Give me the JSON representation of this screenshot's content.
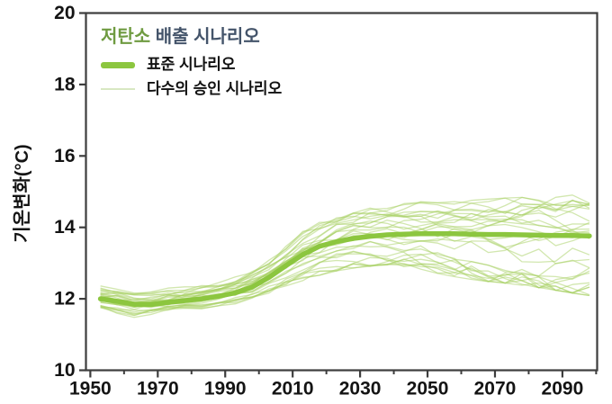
{
  "colors": {
    "frame": "#3d3d3d",
    "tick_label": "#141414",
    "mean_line": "#8cc63f",
    "ensemble_line": "#a6cf60",
    "legend_thin_swatch": "#d8e8c2",
    "title_highlight": "#6f9b41",
    "title_rest": "#44546a",
    "background": "#ffffff"
  },
  "legend": {
    "title_highlight": "저탄소",
    "title_rest": " 배출 시나리오",
    "items": [
      {
        "label": "표준 시나리오",
        "swatch": "thick-line"
      },
      {
        "label": "다수의 승인 시나리오",
        "swatch": "thin-line"
      }
    ]
  },
  "axes": {
    "y_title": "기온변화(°C)",
    "y_tick_labels": [
      "10",
      "12",
      "14",
      "16",
      "18",
      "20"
    ],
    "x_tick_labels": [
      "1950",
      "1970",
      "1990",
      "2010",
      "2030",
      "2050",
      "2070",
      "2090"
    ]
  },
  "chart_data": {
    "type": "line",
    "title": "저탄소 배출 시나리오",
    "xlabel": "",
    "ylabel": "기온변화(°C)",
    "xlim": [
      1948.7,
      2100.3
    ],
    "ylim": [
      10,
      20
    ],
    "y_ticks": [
      10,
      12,
      14,
      16,
      18,
      20
    ],
    "x_major_ticks": [
      1950,
      1970,
      1990,
      2010,
      2030,
      2050,
      2070,
      2090
    ],
    "x_minor_ticks": [
      1960,
      1980,
      2000,
      2020,
      2040,
      2060,
      2080,
      2100
    ],
    "grid": false,
    "legend_position": "top-left",
    "x": [
      1953,
      1958,
      1963,
      1968,
      1973,
      1978,
      1983,
      1988,
      1993,
      1998,
      2003,
      2008,
      2013,
      2018,
      2023,
      2028,
      2033,
      2038,
      2043,
      2048,
      2053,
      2058,
      2063,
      2068,
      2073,
      2078,
      2083,
      2088,
      2093,
      2098
    ],
    "series": [
      {
        "name": "표준 시나리오",
        "role": "mean",
        "color": "#8cc63f",
        "width": 5.5,
        "values": [
          12.0,
          11.93,
          11.85,
          11.84,
          11.9,
          11.95,
          12.0,
          12.07,
          12.17,
          12.33,
          12.6,
          12.93,
          13.24,
          13.47,
          13.6,
          13.69,
          13.75,
          13.79,
          13.81,
          13.82,
          13.82,
          13.82,
          13.81,
          13.8,
          13.8,
          13.79,
          13.78,
          13.77,
          13.77,
          13.76
        ]
      },
      {
        "name": "다수의 승인 시나리오",
        "role": "ensemble",
        "color": "#a6cf60",
        "opacity": 0.5,
        "width": 1.3,
        "member_count": 30,
        "envelope_min": [
          11.72,
          11.62,
          11.52,
          11.6,
          11.67,
          11.72,
          11.76,
          11.82,
          11.9,
          12.02,
          12.2,
          12.4,
          12.55,
          12.7,
          12.82,
          12.9,
          12.95,
          12.97,
          12.94,
          12.85,
          12.75,
          12.66,
          12.58,
          12.52,
          12.48,
          12.42,
          12.35,
          12.28,
          12.2,
          12.13
        ],
        "envelope_max": [
          12.32,
          12.24,
          12.16,
          12.2,
          12.26,
          12.31,
          12.36,
          12.45,
          12.58,
          12.78,
          13.06,
          13.45,
          13.85,
          14.1,
          14.28,
          14.4,
          14.5,
          14.58,
          14.64,
          14.68,
          14.65,
          14.68,
          14.72,
          14.75,
          14.78,
          14.8,
          14.84,
          14.87,
          14.9,
          14.86
        ]
      }
    ]
  }
}
